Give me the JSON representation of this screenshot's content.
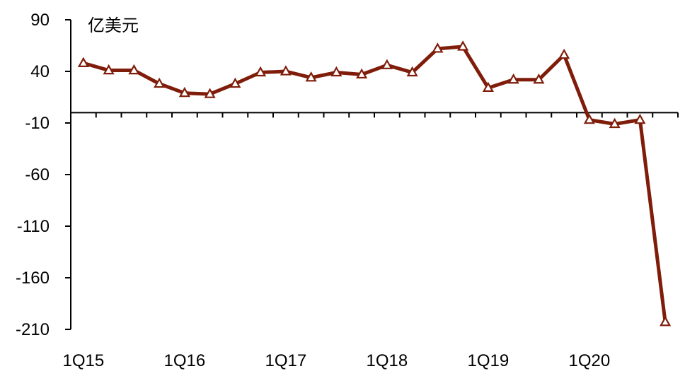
{
  "chart_data": {
    "type": "line",
    "unit_label": "亿美元",
    "ylim": [
      -210,
      90
    ],
    "y_ticks": [
      90,
      40,
      -10,
      -60,
      -110,
      -160,
      -210
    ],
    "x_labels": [
      "1Q15",
      "1Q16",
      "1Q17",
      "1Q18",
      "1Q19",
      "1Q20"
    ],
    "x": [
      "1Q15",
      "2Q15",
      "3Q15",
      "4Q15",
      "1Q16",
      "2Q16",
      "3Q16",
      "4Q16",
      "1Q17",
      "2Q17",
      "3Q17",
      "4Q17",
      "1Q18",
      "2Q18",
      "3Q18",
      "4Q18",
      "1Q19",
      "2Q19",
      "3Q19",
      "4Q19",
      "1Q20",
      "2Q20",
      "3Q20",
      "4Q20"
    ],
    "series": [
      {
        "values": [
          48,
          41,
          41,
          28,
          19,
          18,
          28,
          39,
          40,
          34,
          39,
          37,
          46,
          39,
          62,
          64,
          24,
          32,
          32,
          56,
          -7,
          -11,
          -7,
          -203
        ],
        "color": "#7f1d0a",
        "marker": "triangle-open"
      }
    ],
    "grid": false,
    "legend": "none"
  }
}
